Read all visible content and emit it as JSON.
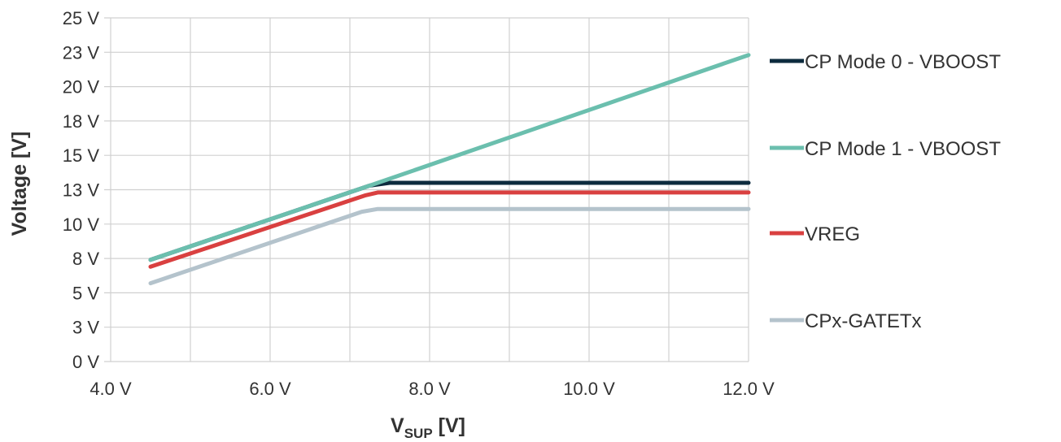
{
  "chart_data": {
    "type": "line",
    "title": "",
    "ylabel": "Voltage [V]",
    "xlabel": {
      "main": "V",
      "sub": "SUP",
      "suffix": " [V]"
    },
    "xlim": [
      4.0,
      12.0
    ],
    "ylim": [
      0,
      25
    ],
    "x_ticks": [
      {
        "value": 4.0,
        "label": "4.0 V"
      },
      {
        "value": 6.0,
        "label": "6.0 V"
      },
      {
        "value": 8.0,
        "label": "8.0 V"
      },
      {
        "value": 10.0,
        "label": "10.0 V"
      },
      {
        "value": 12.0,
        "label": "12.0 V"
      }
    ],
    "y_ticks": [
      {
        "value": 0,
        "label": "0 V"
      },
      {
        "value": 2.5,
        "label": "3 V"
      },
      {
        "value": 5,
        "label": "5 V"
      },
      {
        "value": 7.5,
        "label": "8 V"
      },
      {
        "value": 10,
        "label": "10 V"
      },
      {
        "value": 12.5,
        "label": "13 V"
      },
      {
        "value": 15,
        "label": "15 V"
      },
      {
        "value": 17.5,
        "label": "18 V"
      },
      {
        "value": 20,
        "label": "20 V"
      },
      {
        "value": 22.5,
        "label": "23 V"
      },
      {
        "value": 25,
        "label": "25 V"
      }
    ],
    "x_minor_gridlines": [
      5.0,
      7.0,
      9.0,
      11.0
    ],
    "grid": true,
    "legend_position": "right",
    "series": [
      {
        "name": "CP Mode 0 - VBOOST",
        "color": "#0d2b3e",
        "x": [
          4.5,
          7.25,
          7.5,
          12.0
        ],
        "y": [
          7.4,
          12.8,
          13.0,
          13.0
        ]
      },
      {
        "name": "CP Mode 1 - VBOOST",
        "color": "#6bbfae",
        "x": [
          4.5,
          7.25,
          12.0
        ],
        "y": [
          7.4,
          12.8,
          22.3
        ]
      },
      {
        "name": "VREG",
        "color": "#d94040",
        "x": [
          4.5,
          7.2,
          7.35,
          12.0
        ],
        "y": [
          6.9,
          12.1,
          12.3,
          12.3
        ]
      },
      {
        "name": "CPx-GATETx",
        "color": "#b4c3cc",
        "x": [
          4.5,
          7.15,
          7.35,
          12.0
        ],
        "y": [
          5.7,
          10.9,
          11.1,
          11.1
        ]
      }
    ]
  }
}
